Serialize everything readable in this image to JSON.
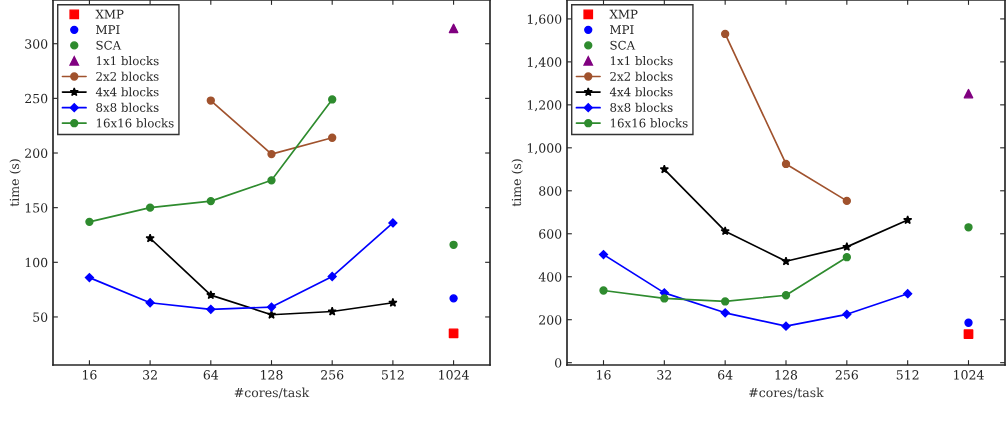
{
  "chart_data": [
    {
      "type": "line",
      "xlabel": "#cores/task",
      "ylabel": "time (s)",
      "categories": [
        "16",
        "32",
        "64",
        "128",
        "256",
        "512",
        "1024"
      ],
      "ylim": [
        6,
        340
      ],
      "yticks": [
        50,
        100,
        150,
        200,
        250,
        300
      ],
      "grid": false,
      "legend": "top left",
      "series": [
        {
          "name": "XMP",
          "type": "scatter",
          "marker": "square",
          "color": "#ff0000",
          "values": [
            null,
            null,
            null,
            null,
            null,
            null,
            35
          ]
        },
        {
          "name": "MPI",
          "type": "scatter",
          "marker": "circle",
          "color": "#0000ff",
          "values": [
            null,
            null,
            null,
            null,
            null,
            null,
            67
          ]
        },
        {
          "name": "SCA",
          "type": "scatter",
          "marker": "circle",
          "color": "#2e8b2e",
          "values": [
            null,
            null,
            null,
            null,
            null,
            null,
            116
          ]
        },
        {
          "name": "1x1 blocks",
          "type": "scatter",
          "marker": "triangle",
          "color": "#800080",
          "values": [
            null,
            null,
            null,
            null,
            null,
            null,
            314
          ]
        },
        {
          "name": "2x2 blocks",
          "marker": "circle",
          "color": "#a0522d",
          "values": [
            null,
            null,
            248,
            199,
            214,
            null,
            null
          ]
        },
        {
          "name": "4x4 blocks",
          "marker": "star",
          "color": "#000000",
          "values": [
            null,
            122,
            70,
            52,
            55,
            63,
            null
          ]
        },
        {
          "name": "8x8 blocks",
          "marker": "diamond",
          "color": "#0000ff",
          "values": [
            86,
            63,
            57,
            59,
            87,
            136,
            null
          ]
        },
        {
          "name": "16x16 blocks",
          "marker": "circle",
          "color": "#2e8b2e",
          "values": [
            137,
            150,
            156,
            175,
            249,
            null,
            null
          ]
        }
      ]
    },
    {
      "type": "line",
      "xlabel": "#cores/task",
      "ylabel": "time (s)",
      "categories": [
        "16",
        "32",
        "64",
        "128",
        "256",
        "512",
        "1024"
      ],
      "ylim": [
        -11,
        1688
      ],
      "yticks": [
        0,
        200,
        400,
        600,
        800,
        {
          "value": 1000,
          "label": "1,000"
        },
        {
          "value": 1200,
          "label": "1,200"
        },
        {
          "value": 1400,
          "label": "1,400"
        },
        {
          "value": 1600,
          "label": "1,600"
        }
      ],
      "grid": false,
      "legend": "top left",
      "series": [
        {
          "name": "XMP",
          "type": "scatter",
          "marker": "square",
          "color": "#ff0000",
          "values": [
            null,
            null,
            null,
            null,
            null,
            null,
            133
          ]
        },
        {
          "name": "MPI",
          "type": "scatter",
          "marker": "circle",
          "color": "#0000ff",
          "values": [
            null,
            null,
            null,
            null,
            null,
            null,
            186
          ]
        },
        {
          "name": "SCA",
          "type": "scatter",
          "marker": "circle",
          "color": "#2e8b2e",
          "values": [
            null,
            null,
            null,
            null,
            null,
            null,
            630
          ]
        },
        {
          "name": "1x1 blocks",
          "type": "scatter",
          "marker": "triangle",
          "color": "#800080",
          "values": [
            null,
            null,
            null,
            null,
            null,
            null,
            1252
          ]
        },
        {
          "name": "2x2 blocks",
          "marker": "circle",
          "color": "#a0522d",
          "values": [
            null,
            null,
            1530,
            925,
            753,
            null,
            null
          ]
        },
        {
          "name": "4x4 blocks",
          "marker": "star",
          "color": "#000000",
          "values": [
            null,
            900,
            612,
            472,
            539,
            664,
            null
          ]
        },
        {
          "name": "8x8 blocks",
          "marker": "diamond",
          "color": "#0000ff",
          "values": [
            503,
            325,
            232,
            170,
            225,
            321,
            null
          ]
        },
        {
          "name": "16x16 blocks",
          "marker": "circle",
          "color": "#2e8b2e",
          "values": [
            336,
            299,
            285,
            314,
            491,
            null,
            null
          ]
        }
      ]
    }
  ]
}
